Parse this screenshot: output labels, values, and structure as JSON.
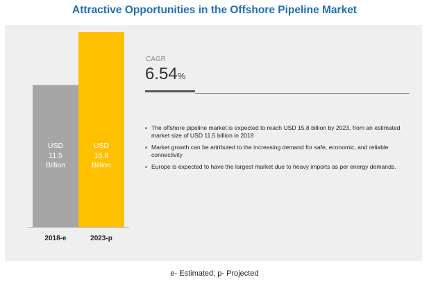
{
  "title": "Attractive Opportunities in the Offshore Pipeline Market",
  "cagr": {
    "label": "CAGR",
    "value": "6.54",
    "unit": "%"
  },
  "bullets": [
    "The offshore pipeline market is expected to reach USD 15.8 billion by 2023, from an estimated market size of USD 11.5 billion in 2018",
    "Market growth can be attributed to the increasing demand for safe, economic, and reliable connectivity",
    "Europe is expected to have the largest market due to heavy imports as per energy demands."
  ],
  "footnote": "e- Estimated; p- Projected",
  "colors": {
    "title": "#1f6fb5",
    "bar_2018": "#a6a6a6",
    "bar_2023": "#ffc000",
    "panel": "#efefef"
  },
  "chart_data": {
    "type": "bar",
    "categories": [
      "2018-e",
      "2023-p"
    ],
    "values": [
      11.5,
      15.8
    ],
    "value_labels": [
      [
        "USD",
        "11.5",
        "Billion"
      ],
      [
        "USD",
        "15.8",
        "Billion"
      ]
    ],
    "colors": [
      "#a6a6a6",
      "#ffc000"
    ],
    "title": "",
    "xlabel": "",
    "ylabel": "",
    "ylim": [
      0,
      15.8
    ],
    "grid": false
  }
}
